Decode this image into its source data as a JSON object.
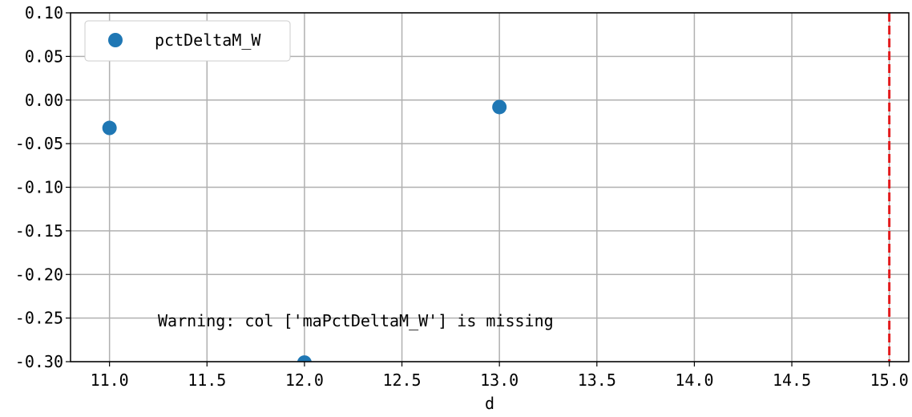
{
  "chart_data": {
    "type": "scatter",
    "title": "",
    "xlabel": "d",
    "ylabel": "",
    "xlim": [
      10.8,
      15.1
    ],
    "ylim": [
      -0.3,
      0.1
    ],
    "xticks": [
      "11.0",
      "11.5",
      "12.0",
      "12.5",
      "13.0",
      "13.5",
      "14.0",
      "14.5",
      "15.0"
    ],
    "yticks": [
      "0.10",
      "0.05",
      "0.00",
      "-0.05",
      "-0.10",
      "-0.15",
      "-0.20",
      "-0.25",
      "-0.30"
    ],
    "grid": true,
    "legend_placement": "top-left",
    "series": [
      {
        "name": "pctDeltaM_W",
        "color": "#1f77b4",
        "x": [
          11.0,
          12.0,
          13.0
        ],
        "y": [
          -0.032,
          -0.301,
          -0.008
        ]
      }
    ],
    "reference_line": {
      "orientation": "vertical",
      "x": 15.0,
      "color": "#e31a1c",
      "style": "dashed"
    },
    "annotation": "Warning: col ['maPctDeltaM_W'] is missing"
  }
}
